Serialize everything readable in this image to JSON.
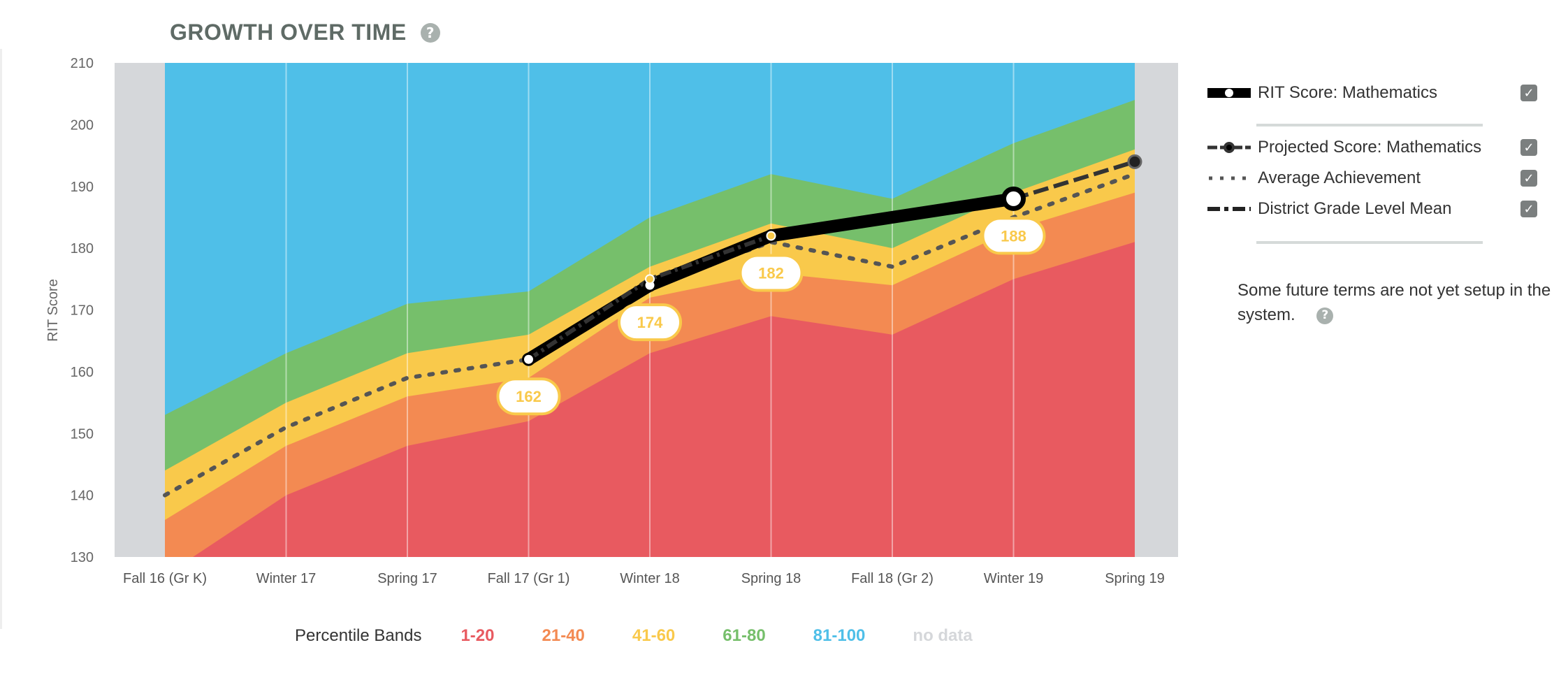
{
  "page": {
    "title": "GROWTH OVER TIME",
    "title_help": "?",
    "note": "Some future terms are not yet setup in the system.",
    "note_help": "?"
  },
  "legend": {
    "items": [
      {
        "label": "RIT Score: Mathematics",
        "checked": true,
        "check_glyph": "✓"
      },
      {
        "label": "Projected Score: Mathematics",
        "checked": true,
        "check_glyph": "✓"
      },
      {
        "label": "Average Achievement",
        "checked": true,
        "check_glyph": "✓"
      },
      {
        "label": "District Grade Level Mean",
        "checked": true,
        "check_glyph": "✓"
      }
    ]
  },
  "percentile_bands": {
    "title": "Percentile Bands",
    "items": [
      {
        "label": "1-20",
        "color": "#e85a60"
      },
      {
        "label": "21-40",
        "color": "#f38a52"
      },
      {
        "label": "41-60",
        "color": "#f9c94b"
      },
      {
        "label": "61-80",
        "color": "#76bf6b"
      },
      {
        "label": "81-100",
        "color": "#4fbfe8"
      },
      {
        "label": "no data",
        "color": "#d5d7da"
      }
    ]
  },
  "chart_data": {
    "type": "area",
    "title": "GROWTH OVER TIME",
    "ylabel": "RIT Score",
    "xlabel": "",
    "ylim": [
      130,
      210
    ],
    "yticks": [
      130,
      140,
      150,
      160,
      170,
      180,
      190,
      200,
      210
    ],
    "categories": [
      "Fall 16 (Gr K)",
      "Winter 17",
      "Spring 17",
      "Fall 17 (Gr 1)",
      "Winter 18",
      "Spring 18",
      "Fall 18 (Gr 2)",
      "Winter 19",
      "Spring 19"
    ],
    "band_boundaries": {
      "p20": [
        127,
        140,
        148,
        152,
        163,
        169,
        166,
        175,
        181
      ],
      "p40": [
        136,
        148,
        156,
        159,
        172,
        176,
        174,
        183,
        189
      ],
      "p60": [
        144,
        155,
        163,
        166,
        177,
        184,
        180,
        189,
        196
      ],
      "p80": [
        153,
        163,
        171,
        173,
        185,
        192,
        188,
        197,
        204
      ]
    },
    "band_colors": [
      "#e85a60",
      "#f38a52",
      "#f9c94b",
      "#76bf6b",
      "#4fbfe8"
    ],
    "no_data_color": "#d5d7da",
    "series": [
      {
        "name": "RIT Score: Mathematics",
        "x": [
          "Fall 17 (Gr 1)",
          "Winter 18",
          "Spring 18",
          "Winter 19"
        ],
        "values": [
          162,
          174,
          182,
          188
        ],
        "labels": [
          "162",
          "174",
          "182",
          "188"
        ]
      },
      {
        "name": "Projected Score: Mathematics",
        "x": [
          "Winter 19",
          "Spring 19"
        ],
        "values": [
          188,
          194
        ]
      },
      {
        "name": "Average Achievement",
        "x": [
          "Fall 16 (Gr K)",
          "Winter 17",
          "Spring 17",
          "Fall 17 (Gr 1)",
          "Winter 18",
          "Spring 18",
          "Fall 18 (Gr 2)",
          "Winter 19",
          "Spring 19"
        ],
        "values": [
          140,
          151,
          159,
          162,
          174,
          181,
          177,
          185,
          192
        ]
      },
      {
        "name": "District Grade Level Mean",
        "x": [
          "Fall 17 (Gr 1)",
          "Winter 18",
          "Spring 18"
        ],
        "values": [
          162,
          175,
          182
        ]
      }
    ],
    "grid": true,
    "legend_position": "right"
  }
}
